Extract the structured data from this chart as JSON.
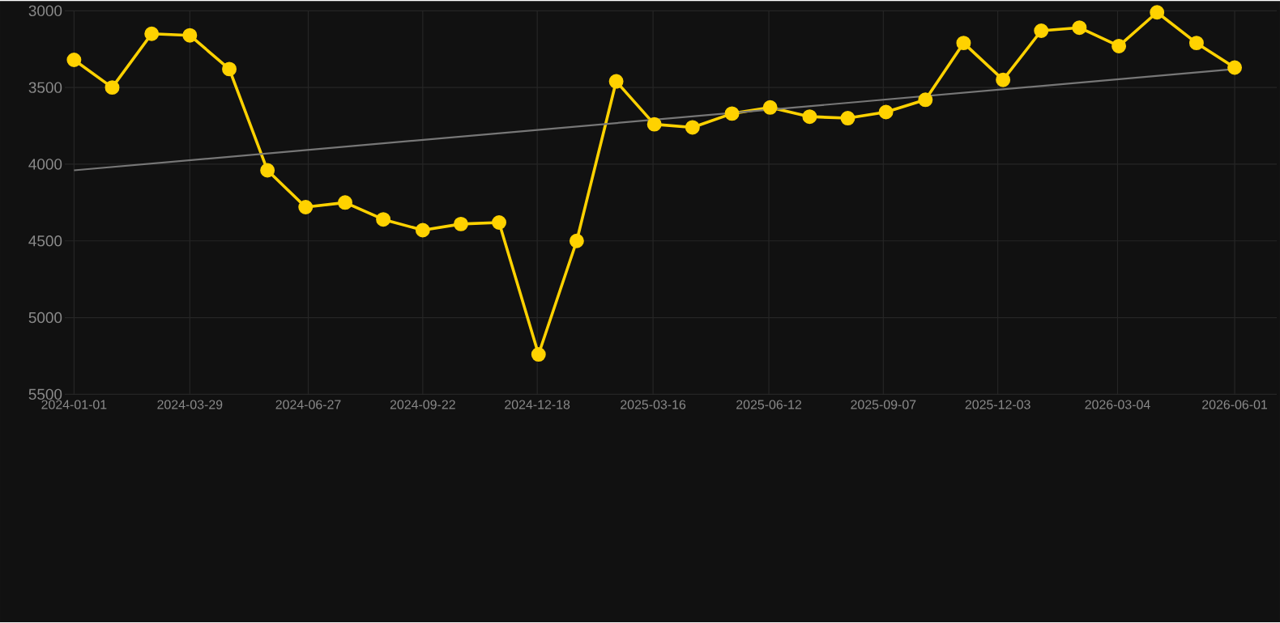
{
  "chart_data": {
    "type": "line",
    "x": [
      "2024-01-01",
      "2024-01-30",
      "2024-02-29",
      "2024-03-29",
      "2024-04-28",
      "2024-05-27",
      "2024-06-25",
      "2024-07-25",
      "2024-08-23",
      "2024-09-22",
      "2024-10-21",
      "2024-11-19",
      "2024-12-19",
      "2025-01-17",
      "2025-02-16",
      "2025-03-17",
      "2025-04-15",
      "2025-05-15",
      "2025-06-13",
      "2025-07-13",
      "2025-08-11",
      "2025-09-09",
      "2025-10-09",
      "2025-11-07",
      "2025-12-07",
      "2026-01-05",
      "2026-02-03",
      "2026-03-05",
      "2026-04-03",
      "2026-05-03",
      "2026-06-01"
    ],
    "series": [
      {
        "color": "#ffd200",
        "marker": "circle",
        "values": [
          3320,
          3500,
          3150,
          3160,
          3380,
          4040,
          4280,
          4250,
          4360,
          4430,
          4390,
          4380,
          5240,
          4500,
          3460,
          3740,
          3760,
          3670,
          3630,
          3690,
          3700,
          3660,
          3580,
          3210,
          3450,
          3130,
          3110,
          3230,
          3010,
          3210,
          3370
        ]
      },
      {
        "type": "line",
        "color": "#777777",
        "marker": "none",
        "x": [
          "2024-01-01",
          "2026-06-01"
        ],
        "values": [
          4040,
          3380
        ]
      }
    ],
    "xlim": [
      "2023-12-25",
      "2026-07-03"
    ],
    "ylim": [
      5500,
      3000
    ],
    "xticks": [
      "2024-01-01",
      "2024-03-29",
      "2024-06-27",
      "2024-09-22",
      "2024-12-18",
      "2025-03-16",
      "2025-06-12",
      "2025-09-07",
      "2025-12-03",
      "2026-03-04",
      "2026-06-01"
    ],
    "yticks": [
      3000,
      3500,
      4000,
      4500,
      5000,
      5500
    ],
    "grid": true,
    "legend": false
  }
}
